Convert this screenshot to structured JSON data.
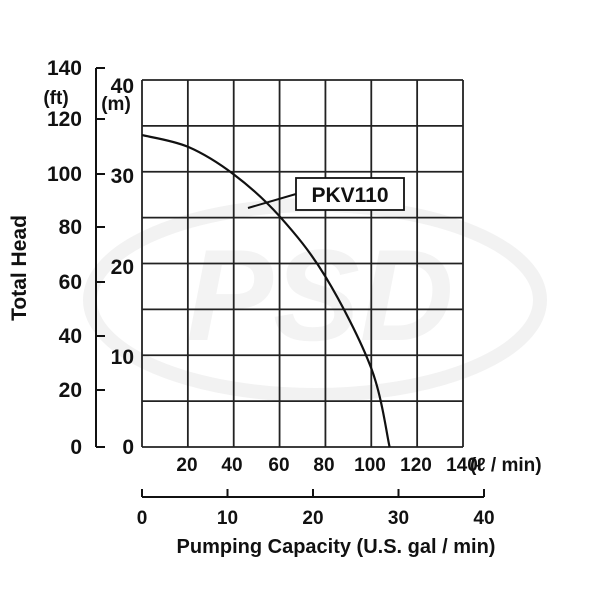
{
  "chart_data": {
    "type": "line",
    "series": [
      {
        "name": "PKV110",
        "x_unit": "l/min",
        "points": [
          [
            0,
            119
          ],
          [
            20,
            114.5
          ],
          [
            40,
            104
          ],
          [
            60,
            88
          ],
          [
            80,
            65
          ],
          [
            100,
            30
          ],
          [
            108,
            0
          ]
        ]
      }
    ],
    "y_axis_ft": {
      "unit_label": "(ft)",
      "ticks": [
        "140",
        "120",
        "100",
        "80",
        "60",
        "40",
        "20",
        "0"
      ],
      "range": [
        0,
        140
      ]
    },
    "y_axis_m": {
      "unit_label": "(m)",
      "ticks": [
        "40",
        "30",
        "20",
        "10",
        "0"
      ],
      "range": [
        0,
        40
      ]
    },
    "x_axis_lpm": {
      "unit_label": "(ℓ / min)",
      "ticks": [
        "20",
        "40",
        "60",
        "80",
        "100",
        "120",
        "140"
      ],
      "range": [
        0,
        140
      ]
    },
    "x_axis_gpm": {
      "ticks": [
        "0",
        "10",
        "20",
        "30",
        "40"
      ],
      "range": [
        0,
        40
      ]
    },
    "ylabel": "Total Head",
    "xlabel": "Pumping Capacity  (U.S. gal / min)",
    "grid": true,
    "watermark_logo_text": "PSD",
    "colors": {
      "line": "#111111",
      "grid": "#222222",
      "text": "#111111"
    }
  }
}
